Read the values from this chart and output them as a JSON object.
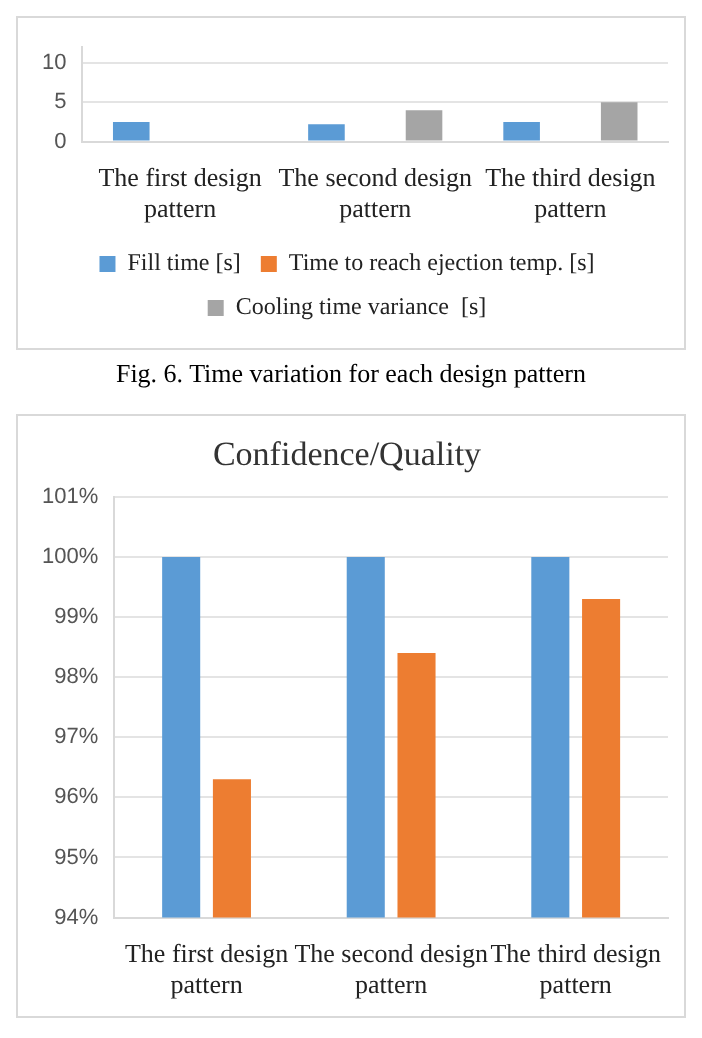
{
  "chart_data": [
    {
      "type": "bar",
      "categories": [
        "The first design pattern",
        "The second design pattern",
        "The third design pattern"
      ],
      "series": [
        {
          "name": "Fill time [s]",
          "color": "#5b9bd5",
          "values": [
            2.5,
            2.2,
            2.5
          ]
        },
        {
          "name": "Time to reach ejection temp. [s]",
          "color": "#ed7d31",
          "values": [
            null,
            null,
            null
          ]
        },
        {
          "name": "Cooling time variance  [s]",
          "color": "#a5a5a5",
          "values": [
            null,
            4,
            5
          ]
        }
      ],
      "ylim": [
        0,
        12
      ],
      "yticks": [
        0,
        5,
        10
      ],
      "grid": "y",
      "legend": "bottom",
      "annotations": [
        "Fig. 6. Time variation for each design pattern"
      ]
    },
    {
      "type": "bar",
      "title": "Confidence/Quality",
      "categories": [
        "The first design pattern",
        "The second design pattern",
        "The third design pattern"
      ],
      "series": [
        {
          "color": "#5b9bd5",
          "values": [
            100,
            100,
            100
          ]
        },
        {
          "color": "#ed7d31",
          "values": [
            96.3,
            98.4,
            99.3
          ]
        }
      ],
      "ylim": [
        94,
        101
      ],
      "yticks": [
        {
          "value": 94,
          "label": "94%"
        },
        {
          "value": 95,
          "label": "95%"
        },
        {
          "value": 96,
          "label": "96%"
        },
        {
          "value": 97,
          "label": "97%"
        },
        {
          "value": 98,
          "label": "98%"
        },
        {
          "value": 99,
          "label": "99%"
        },
        {
          "value": 100,
          "label": "100%"
        },
        {
          "value": 101,
          "label": "101%"
        }
      ],
      "grid": "y"
    }
  ]
}
